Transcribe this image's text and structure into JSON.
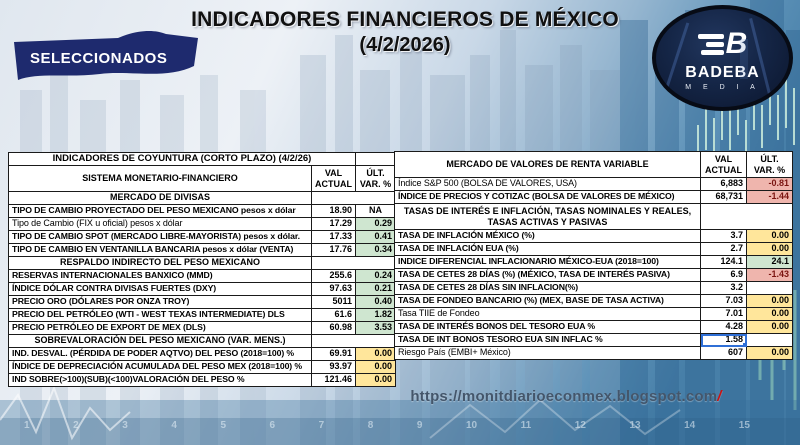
{
  "header": {
    "badge": "SELECCIONADOS",
    "title_line1": "INDICADORES FINANCIEROS DE MÉXICO",
    "title_line2": "(4/2/2026)",
    "logo": {
      "letter": "B",
      "name": "BADEBA",
      "sub": "M E D I A"
    }
  },
  "left_table": {
    "title": "INDICADORES DE COYUNTURA (CORTO PLAZO) (4/2/26)",
    "col_label": "SISTEMA MONETARIO-FINANCIERO",
    "col_val": "VAL ACTUAL",
    "col_var": "ÚLT. VAR. %",
    "rows": [
      {
        "type": "section",
        "label": "MERCADO DE DIVISAS"
      },
      {
        "type": "data",
        "label": "TIPO DE CAMBIO PROYECTADO DEL PESO MEXICANO pesos x dólar",
        "val": "18.90",
        "var": "NA",
        "c": "w",
        "na": true
      },
      {
        "type": "data",
        "label": "Tipo de Cambio (FIX u oficial) pesos x dólar",
        "val": "17.29",
        "var": "0.29",
        "c": "g",
        "reg": true
      },
      {
        "type": "data",
        "label": "TIPO DE CAMBIO SPOT (MERCADO LIBRE-MAYORISTA) pesos x dólar.",
        "val": "17.33",
        "var": "0.41",
        "c": "g"
      },
      {
        "type": "data",
        "label": "TIPO DE CAMBIO EN VENTANILLA BANCARIA pesos x dólar (VENTA)",
        "val": "17.76",
        "var": "0.34",
        "c": "g"
      },
      {
        "type": "section",
        "label": "RESPALDO INDIRECTO DEL PESO MEXICANO"
      },
      {
        "type": "data",
        "label": "RESERVAS INTERNACIONALES BANXICO (MMD)",
        "val": "255.6",
        "var": "0.24",
        "c": "g"
      },
      {
        "type": "data",
        "label": "ÍNDICE DÓLAR CONTRA DIVISAS FUERTES (DXY)",
        "val": "97.63",
        "var": "0.21",
        "c": "g"
      },
      {
        "type": "data",
        "label": "PRECIO ORO (DÓLARES POR ONZA TROY)",
        "val": "5011",
        "var": "0.40",
        "c": "g"
      },
      {
        "type": "data",
        "label": "PRECIO DEL PETRÓLEO (WTI - WEST TEXAS INTERMEDIATE) DLS",
        "val": "61.6",
        "var": "1.82",
        "c": "g"
      },
      {
        "type": "data",
        "label": "PRECIO PETRÓLEO DE EXPORT DE MEX (DLS)",
        "val": "60.98",
        "var": "3.53",
        "c": "g"
      },
      {
        "type": "section",
        "label": "SOBREVALORACIÓN DEL PESO MEXICANO (VAR. MENS.)"
      },
      {
        "type": "data",
        "label": "IND. DESVAL. (PÉRDIDA DE PODER AQTVO) DEL PESO (2018=100) %",
        "val": "69.91",
        "var": "0.00",
        "c": "y"
      },
      {
        "type": "data",
        "label": "ÍNDICE DE DEPRECIACIÓN ACUMULADA DEL PESO MEX (2018=100) %",
        "val": "93.97",
        "var": "0.00",
        "c": "y"
      },
      {
        "type": "data",
        "label": "IND SOBRE(>100)(SUB)(<100)VALORACIÓN DEL PESO  %",
        "val": "121.46",
        "var": "0.00",
        "c": "y"
      }
    ]
  },
  "right_table": {
    "col_label": "MERCADO DE VALORES DE RENTA VARIABLE",
    "col_val": "VAL ACTUAL",
    "col_var": "ÚLT. VAR. %",
    "rows": [
      {
        "type": "data",
        "label": "Índice S&P 500 (BOLSA DE VALORES, USA)",
        "val": "6,883",
        "var": "-0.81",
        "c": "r",
        "reg": true
      },
      {
        "type": "data",
        "label": "ÍNDICE DE PRECIOS Y COTIZAC (BOLSA DE VALORES DE MÉXICO)",
        "val": "68,731",
        "var": "-1.44",
        "c": "r"
      },
      {
        "type": "section",
        "label": "TASAS DE INTERÉS E INFLACIÓN, TASAS NOMINALES Y REALES, TASAS ACTIVAS Y PASIVAS",
        "tall": true
      },
      {
        "type": "data",
        "label": "TASA DE INFLACIÓN MÉXICO (%)",
        "val": "3.7",
        "var": "0.00",
        "c": "y"
      },
      {
        "type": "data",
        "label": "TASA DE INFLACIÓN EUA (%)",
        "val": "2.7",
        "var": "0.00",
        "c": "y"
      },
      {
        "type": "data",
        "label": "INDICE DIFERENCIAL INFLACIONARIO MÉXICO-EUA (2018=100)",
        "val": "124.1",
        "var": "24.1",
        "c": "g"
      },
      {
        "type": "data",
        "label": "TASA DE CETES 28 DÍAS (%) (MÉXICO, TASA DE INTERÉS PASIVA)",
        "val": "6.9",
        "var": "-1.43",
        "c": "r"
      },
      {
        "type": "data",
        "label": "TASA DE CETES 28 DÍAS SIN INFLACION(%)",
        "val": "3.2",
        "var": "",
        "c": "w"
      },
      {
        "type": "data",
        "label": "TASA DE FONDEO BANCARIO (%) (MEX, BASE DE TASA ACTIVA)",
        "val": "7.03",
        "var": "0.00",
        "c": "y"
      },
      {
        "type": "data",
        "label": "Tasa TIIE de Fondeo",
        "val": "7.01",
        "var": "0.00",
        "c": "y",
        "reg": true
      },
      {
        "type": "data",
        "label": "TASA DE INTERÉS BONOS DEL TESORO EUA %",
        "val": "4.28",
        "var": "0.00",
        "c": "y"
      },
      {
        "type": "data",
        "label": "TASA DE INT BONOS TESORO EUA SIN INFLAC %",
        "val": "1.58",
        "var": "",
        "c": "w",
        "sel": true
      },
      {
        "type": "data",
        "label": "Riesgo País (EMBI+ México)",
        "val": "607",
        "var": "0.00",
        "c": "y",
        "reg": true
      }
    ]
  },
  "footer": {
    "url": "https://monitdiarioeconmex.blogspot.com",
    "url_slash": "/"
  },
  "background": {
    "axis_numbers": [
      "1",
      "2",
      "3",
      "4",
      "5",
      "6",
      "7",
      "8",
      "9",
      "10",
      "11",
      "12",
      "13",
      "14",
      "15"
    ]
  },
  "colors": {
    "accent_navy": "#1e2a6e",
    "positive_bg": "#cfe6d0",
    "neutral_bg": "#ffe69b",
    "negative_bg": "#efb5ad",
    "negative_text": "#7a1410",
    "table_border": "#1a1a1a",
    "selection_blue": "#2f6fd6",
    "url_text": "#44566b",
    "url_slash": "#cc1111"
  }
}
